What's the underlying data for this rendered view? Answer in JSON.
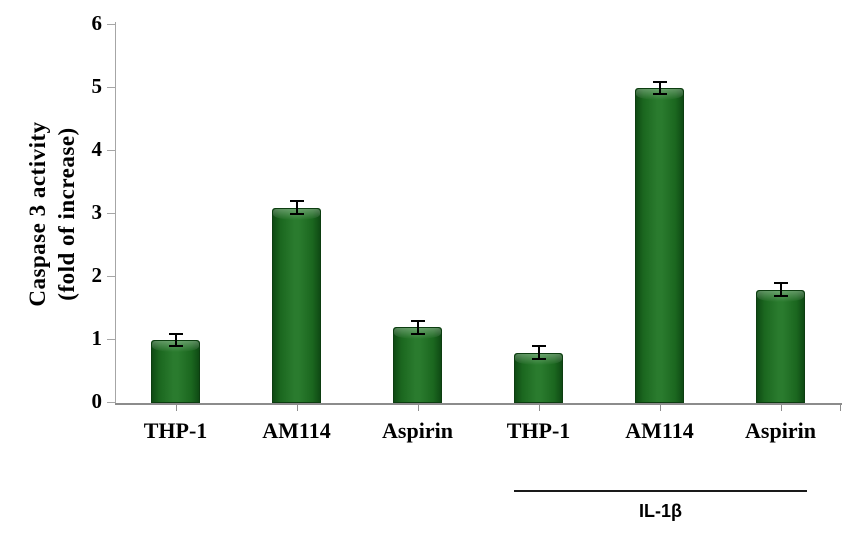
{
  "figure": {
    "background": "#ffffff",
    "y_axis_title_line1": "Caspase 3 activity",
    "y_axis_title_line2": "(fold of increase)"
  },
  "chart_data": {
    "type": "bar",
    "categories": [
      "THP-1",
      "AM114",
      "Aspirin",
      "THP-1",
      "AM114",
      "Aspirin"
    ],
    "values": [
      1.0,
      3.1,
      1.2,
      0.8,
      5.0,
      1.8
    ],
    "errors": [
      0.1,
      0.1,
      0.1,
      0.1,
      0.1,
      0.1
    ],
    "title": "",
    "xlabel": "",
    "ylabel": "Caspase 3 activity (fold of increase)",
    "ylim": [
      0,
      6
    ],
    "yticks": [
      "0",
      "1",
      "2",
      "3",
      "4",
      "5",
      "6"
    ],
    "grid": false,
    "legend": false,
    "bar_color": "#1d6b21",
    "bar_edge_color": "#0c3d10",
    "error_bar_color": "#000000",
    "axis_color": "#a6a6a6",
    "group_annotation": {
      "label": "IL-1β",
      "start_index": 3,
      "end_index": 5
    }
  }
}
